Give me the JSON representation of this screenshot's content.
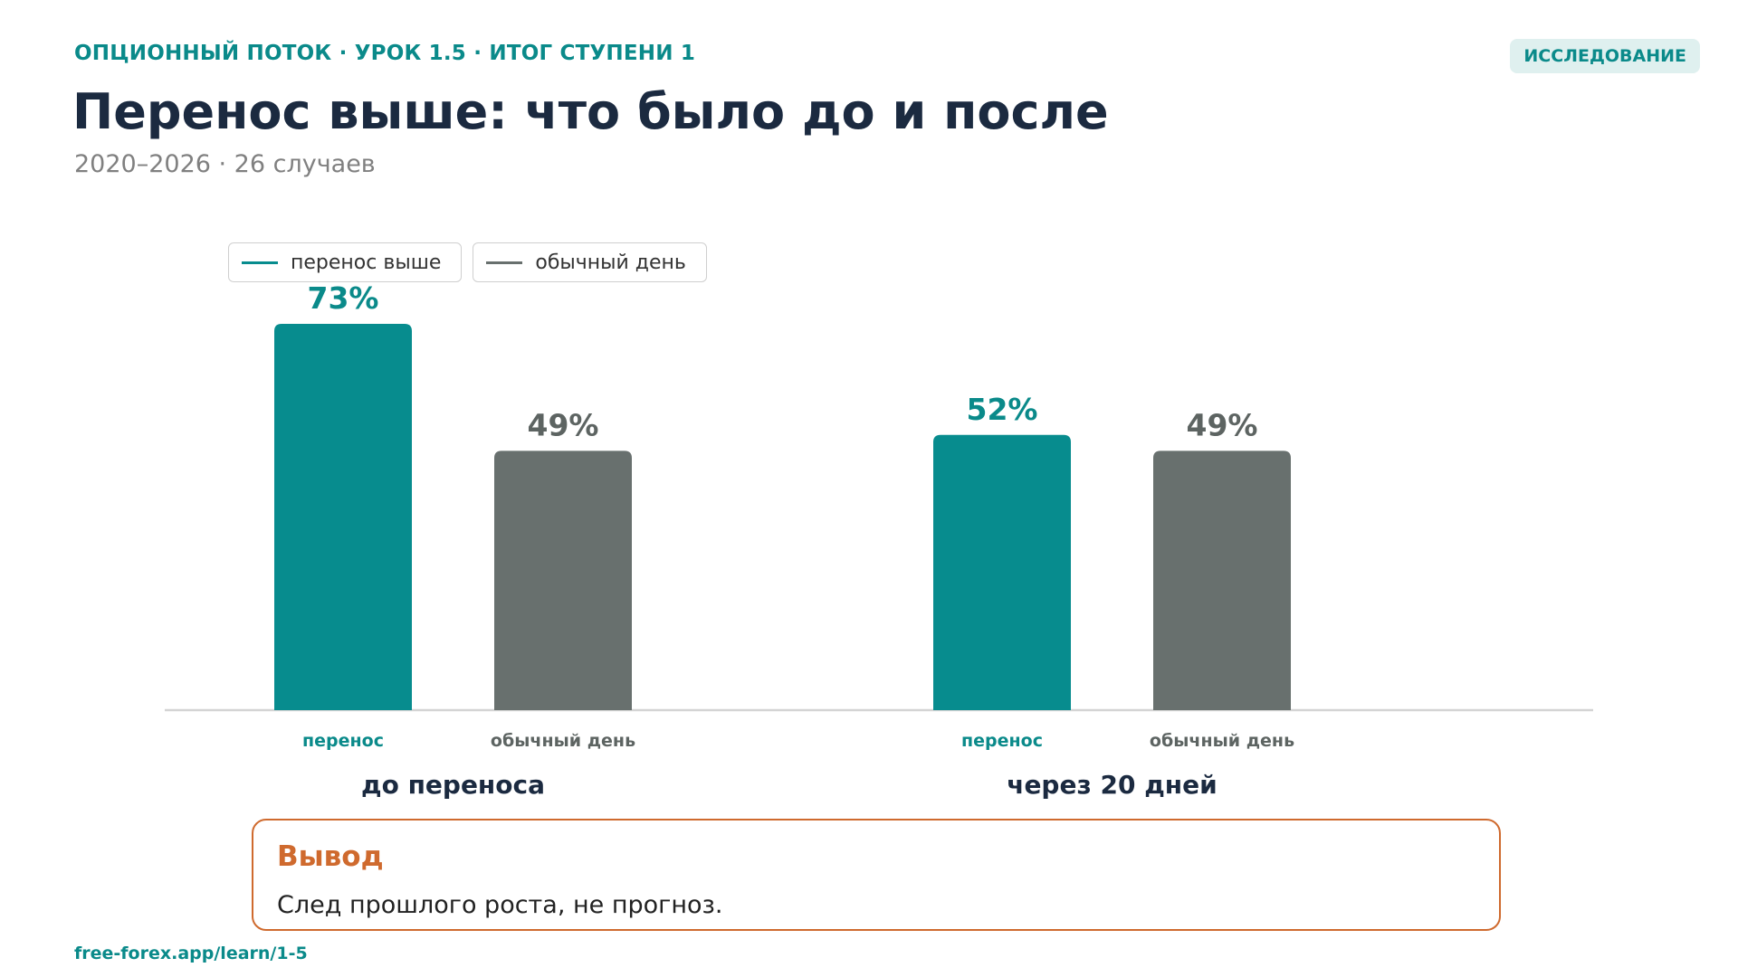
{
  "header": {
    "kicker": "ОПЦИОННЫЙ ПОТОК · УРОК 1.5 · ИТОГ СТУПЕНИ 1",
    "badge": "ИССЛЕДОВАНИЕ",
    "title": "Перенос выше: что было до и после",
    "subtitle": "2020–2026 · 26 случаев"
  },
  "colors": {
    "accent": "#0a8a8a",
    "bar_primary": "#078c8e",
    "bar_secondary": "#68706e",
    "label_primary": "#0a8a8a",
    "label_secondary": "#5d6462",
    "group_label": "#1b2a40",
    "conclusion": "#cf6a2e"
  },
  "chart_data": {
    "type": "bar",
    "title": "Перенос выше: что было до и после",
    "groups": [
      "до переноса",
      "через 20 дней"
    ],
    "series": [
      {
        "name": "перенос выше",
        "bar_label": "перенос",
        "values": [
          73,
          52
        ],
        "value_labels": [
          "73%",
          "52%"
        ],
        "color": "#078c8e"
      },
      {
        "name": "обычный день",
        "bar_label": "обычный день",
        "values": [
          49,
          49
        ],
        "value_labels": [
          "49%",
          "49%"
        ],
        "color": "#68706e"
      }
    ],
    "ylim": [
      0,
      100
    ],
    "unit": "%",
    "grid": false,
    "legend_position": "top-left"
  },
  "conclusion": {
    "title": "Вывод",
    "text": "След прошлого роста, не прогноз."
  },
  "footer": {
    "link": "free-forex.app/learn/1-5"
  }
}
